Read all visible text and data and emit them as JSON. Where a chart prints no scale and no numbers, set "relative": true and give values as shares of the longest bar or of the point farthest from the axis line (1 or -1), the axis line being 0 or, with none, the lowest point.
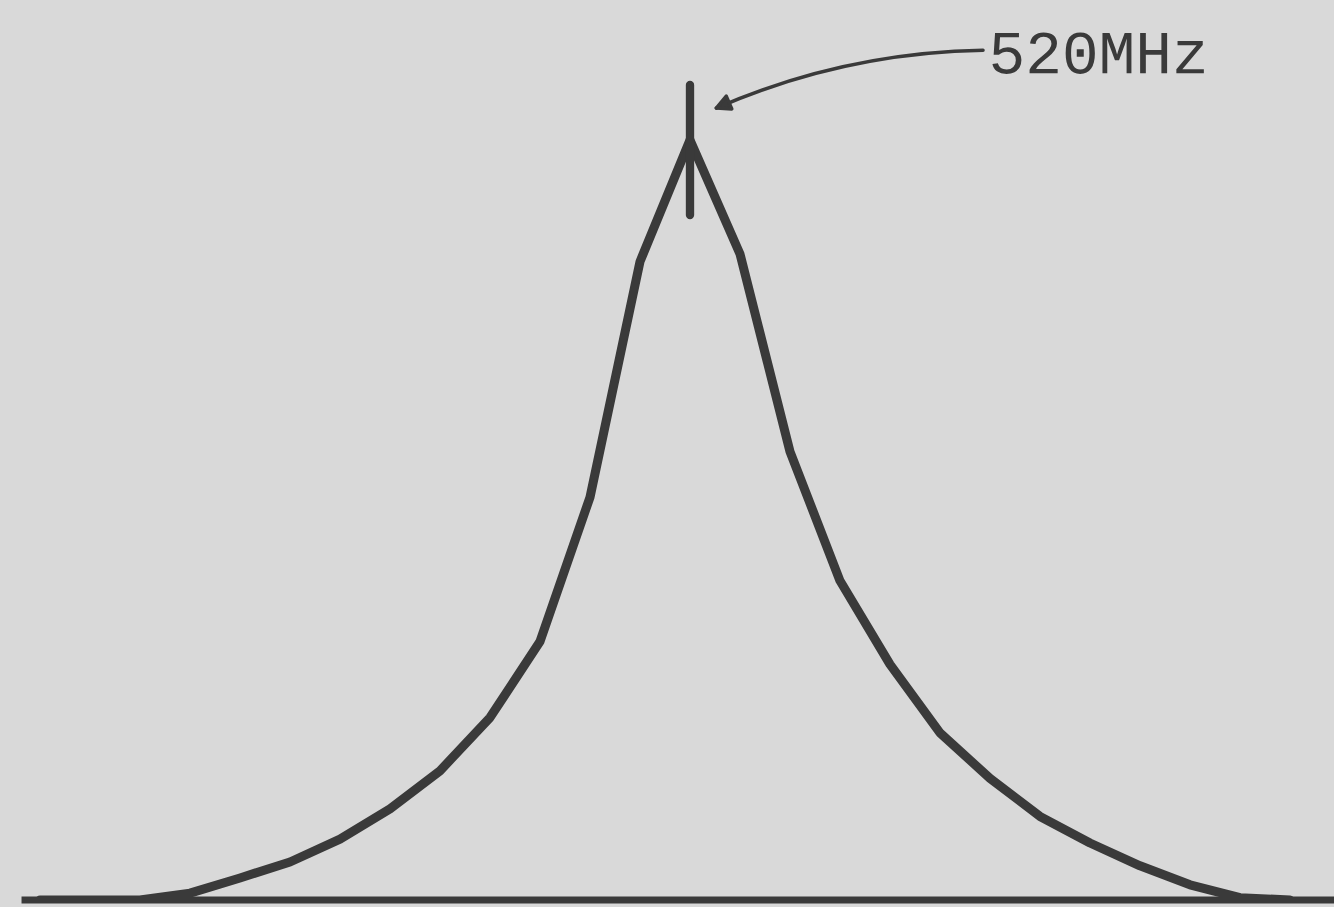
{
  "chart_data": {
    "type": "line",
    "relative": true,
    "grid": false,
    "legend": false,
    "marker": "none",
    "line_style": "solid",
    "categories": [
      null,
      null,
      null,
      null,
      null,
      null,
      null,
      null,
      null,
      null,
      null,
      null,
      null,
      null,
      null,
      null,
      null,
      null,
      null,
      null,
      null,
      null,
      null,
      null,
      null,
      null
    ],
    "series": [
      {
        "color": "#3a3a3a",
        "values": [
          0,
          0,
          0,
          0.009,
          0.029,
          0.05,
          0.08,
          0.12,
          0.17,
          0.24,
          0.34,
          0.53,
          0.84,
          1,
          0.85,
          0.59,
          0.42,
          0.31,
          0.22,
          0.16,
          0.11,
          0.075,
          0.045,
          0.02,
          0.003,
          0
        ]
      }
    ],
    "annotations": [
      "520MHz"
    ]
  }
}
